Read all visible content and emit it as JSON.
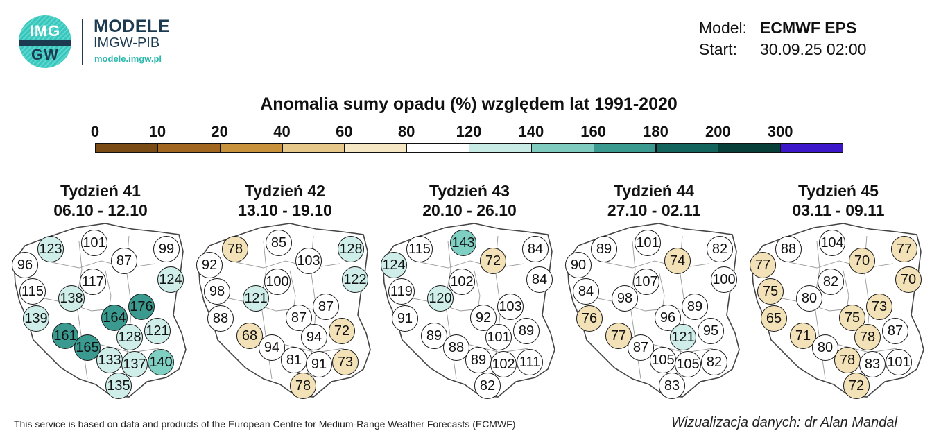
{
  "header": {
    "logo": {
      "line1": "IMG",
      "line2": "GW"
    },
    "brand_title": "MODELE",
    "brand_subtitle": "IMGW-PIB",
    "brand_url": "modele.imgw.pl",
    "model_label": "Model:",
    "model_value": "ECMWF EPS",
    "start_label": "Start:",
    "start_value": "30.09.25 02:00"
  },
  "title": "Anomalia sumy opadu (%) względem lat 1991-2020",
  "colorbar": {
    "ticks": [
      "0",
      "10",
      "20",
      "40",
      "60",
      "80",
      "120",
      "140",
      "160",
      "180",
      "200",
      "300"
    ],
    "colors": [
      "#7a4b14",
      "#a1661f",
      "#c8913c",
      "#e6c98a",
      "#f5e6c4",
      "#ffffff",
      "#c9ebe5",
      "#7fcbc0",
      "#3a9a90",
      "#12645c",
      "#083f38",
      "#3c16c9"
    ]
  },
  "colors": {
    "dry_strong": "#f3e2b8",
    "dry_light": "#faf1dc",
    "normal": "#ffffff",
    "wet_light": "#cfeee9",
    "wet_medium": "#7fcfc3",
    "wet_strong": "#3a9a90",
    "wet_very_strong": "#1e6e65"
  },
  "panels": [
    {
      "week": "Tydzień 41",
      "dates": "06.10 - 12.10",
      "values": [
        96,
        123,
        101,
        87,
        99,
        124,
        115,
        117,
        138,
        176,
        139,
        164,
        121,
        161,
        165,
        128,
        133,
        137,
        140,
        135
      ]
    },
    {
      "week": "Tydzień 42",
      "dates": "13.10 - 19.10",
      "values": [
        92,
        78,
        85,
        103,
        128,
        122,
        98,
        100,
        121,
        87,
        88,
        87,
        72,
        68,
        94,
        94,
        81,
        91,
        73,
        78
      ]
    },
    {
      "week": "Tydzień 43",
      "dates": "20.10 - 26.10",
      "values": [
        124,
        115,
        143,
        72,
        84,
        84,
        119,
        102,
        120,
        103,
        91,
        92,
        89,
        89,
        88,
        101,
        89,
        102,
        111,
        82
      ]
    },
    {
      "week": "Tydzień 44",
      "dates": "27.10 - 02.11",
      "values": [
        90,
        89,
        101,
        74,
        82,
        100,
        84,
        107,
        98,
        89,
        76,
        96,
        95,
        77,
        87,
        121,
        105,
        105,
        82,
        83
      ]
    },
    {
      "week": "Tydzień 45",
      "dates": "03.11 - 09.11",
      "values": [
        77,
        88,
        104,
        70,
        77,
        70,
        75,
        82,
        80,
        73,
        65,
        75,
        87,
        71,
        80,
        78,
        78,
        83,
        101,
        72
      ]
    }
  ],
  "footer": {
    "left": "This service is based on data and products of the European Centre for Medium-Range Weather Forecasts (ECMWF)",
    "right": "Wizualizacja danych: dr Alan Mandal"
  }
}
